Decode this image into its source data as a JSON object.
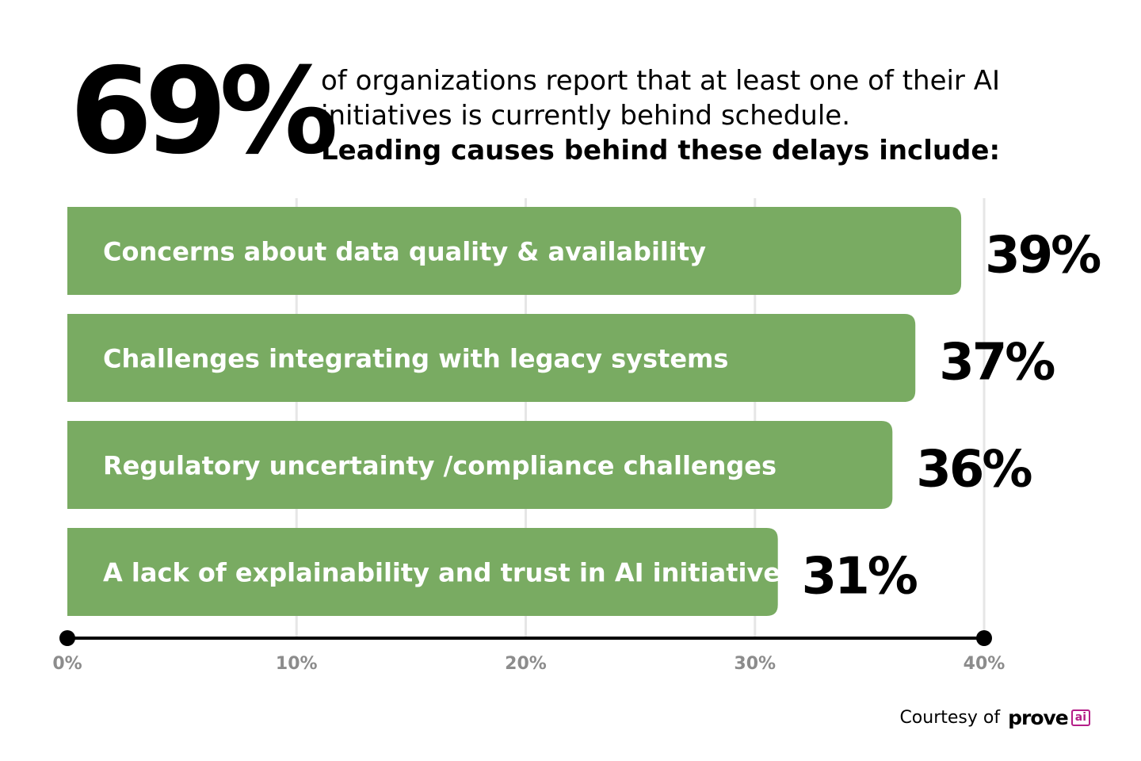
{
  "headline": {
    "big_stat": "69%",
    "line1": "of organizations report that at least one of their AI",
    "line2": "initiatives is currently behind schedule.",
    "line3": "Leading causes behind these delays include:"
  },
  "chart_data": {
    "type": "bar",
    "orientation": "horizontal",
    "categories": [
      "Concerns about data quality & availability",
      "Challenges integrating with legacy systems",
      "Regulatory uncertainty /compliance challenges",
      "A lack of explainability and trust in AI initiatives"
    ],
    "values": [
      39,
      37,
      36,
      31
    ],
    "value_labels": [
      "39%",
      "37%",
      "36%",
      "31%"
    ],
    "xlim": [
      0,
      40
    ],
    "ticks": [
      0,
      10,
      20,
      30,
      40
    ],
    "tick_labels": [
      "0%",
      "10%",
      "20%",
      "30%",
      "40%"
    ],
    "grid": true,
    "bar_color": "#79ab62",
    "bar_text_color": "#ffffff",
    "axis_color": "#000000",
    "tick_label_color": "#8c8c8c",
    "grid_color": "#e6e6e6"
  },
  "footer": {
    "credit": "Courtesy of",
    "logo_text": "prove",
    "logo_badge": "ai"
  }
}
